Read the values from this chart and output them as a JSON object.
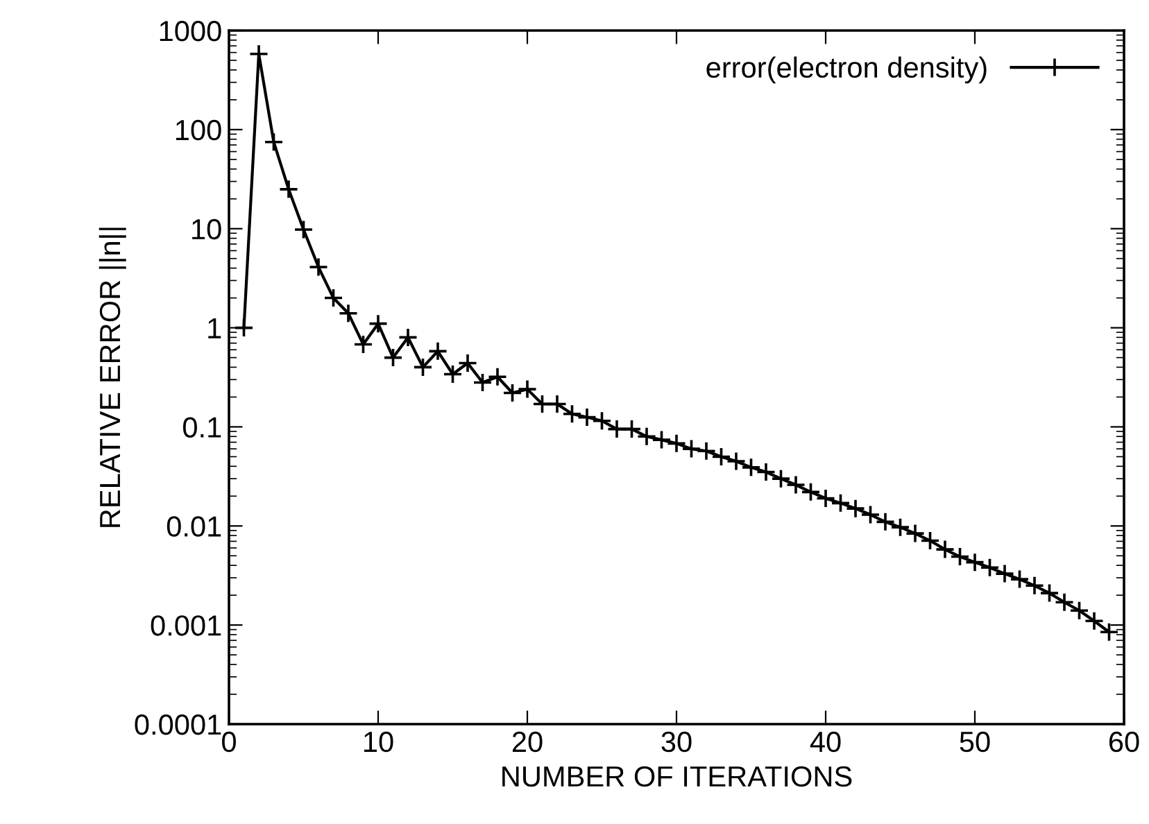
{
  "chart_data": {
    "type": "line",
    "xlabel": "NUMBER OF ITERATIONS",
    "ylabel": "RELATIVE ERROR ||n||",
    "x": [
      1,
      2,
      3,
      4,
      5,
      6,
      7,
      8,
      9,
      10,
      11,
      12,
      13,
      14,
      15,
      16,
      17,
      18,
      19,
      20,
      21,
      22,
      23,
      24,
      25,
      26,
      27,
      28,
      29,
      30,
      31,
      32,
      33,
      34,
      35,
      36,
      37,
      38,
      39,
      40,
      41,
      42,
      43,
      44,
      45,
      46,
      47,
      48,
      49,
      50,
      51,
      52,
      53,
      54,
      55,
      56,
      57,
      58,
      59
    ],
    "series": [
      {
        "name": "error(electron density)",
        "color": "#000000",
        "values": [
          1,
          580,
          75,
          25,
          9.8,
          4.1,
          2.0,
          1.4,
          0.68,
          1.1,
          0.5,
          0.8,
          0.4,
          0.58,
          0.34,
          0.44,
          0.28,
          0.32,
          0.22,
          0.24,
          0.17,
          0.17,
          0.135,
          0.125,
          0.115,
          0.095,
          0.095,
          0.08,
          0.074,
          0.068,
          0.06,
          0.057,
          0.05,
          0.045,
          0.039,
          0.035,
          0.03,
          0.026,
          0.022,
          0.019,
          0.017,
          0.015,
          0.013,
          0.011,
          0.0097,
          0.0084,
          0.0071,
          0.0058,
          0.0049,
          0.0043,
          0.0038,
          0.0033,
          0.0029,
          0.0025,
          0.0021,
          0.0017,
          0.0014,
          0.0011,
          0.00085
        ]
      }
    ],
    "log": "y",
    "xlim": [
      0,
      60
    ],
    "ylim": [
      0.0001,
      1000
    ],
    "xticks": [
      0,
      10,
      20,
      30,
      40,
      50,
      60
    ],
    "yticks": [
      {
        "value": 0.0001,
        "label": "0.0001"
      },
      {
        "value": 0.001,
        "label": "0.001"
      },
      {
        "value": 0.01,
        "label": "0.01"
      },
      {
        "value": 0.1,
        "label": "0.1"
      },
      1,
      10,
      100,
      1000
    ],
    "grid": false,
    "legend": "top right",
    "marker": "cross",
    "line_style": "solid"
  }
}
